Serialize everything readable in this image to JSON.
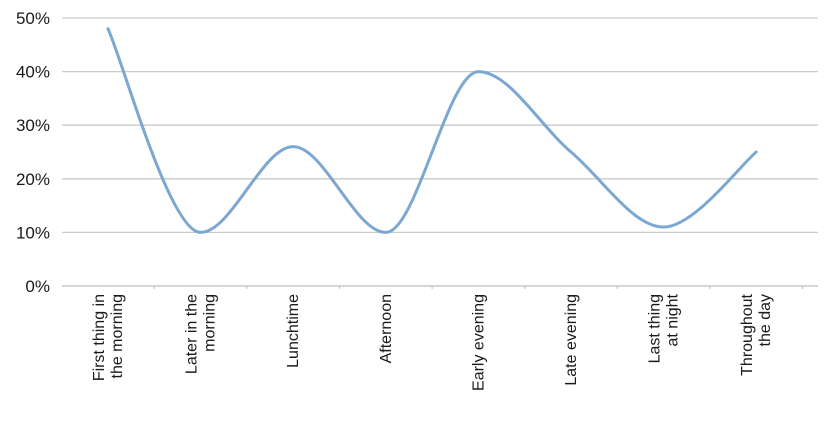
{
  "chart_data": {
    "type": "line",
    "title": "",
    "xlabel": "",
    "ylabel": "",
    "categories": [
      [
        "First thing in",
        "the morning"
      ],
      [
        "Later in the",
        "morning"
      ],
      [
        "Lunchtime"
      ],
      [
        "Afternoon"
      ],
      [
        "Early evening"
      ],
      [
        "Late evening"
      ],
      [
        "Last thing",
        "at night"
      ],
      [
        "Throughout",
        "the day"
      ]
    ],
    "series": [
      {
        "values": [
          48,
          10,
          26,
          10,
          40,
          25,
          11,
          25
        ]
      }
    ],
    "ylim": [
      0,
      50
    ],
    "yticks": [
      0,
      10,
      20,
      30,
      40,
      50
    ],
    "ytick_labels": [
      "0%",
      "10%",
      "20%",
      "30%",
      "40%",
      "50%"
    ],
    "grid": true,
    "legend": "none",
    "smooth": true,
    "colors": {
      "line": "#7ba7d0",
      "grid": "#c9c9c9",
      "axis": "#bdbdbd"
    }
  }
}
